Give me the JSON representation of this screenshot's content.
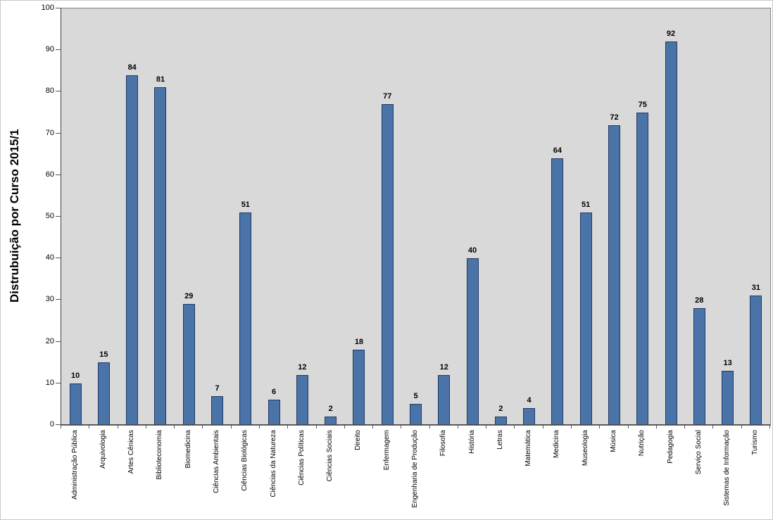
{
  "chart_data": {
    "type": "bar",
    "title": "Distrubuição por Curso 2015/1",
    "ylabel": "Distrubuição por Curso 2015/1",
    "xlabel": "",
    "ylim": [
      0,
      100
    ],
    "yticks": [
      0,
      10,
      20,
      30,
      40,
      50,
      60,
      70,
      80,
      90,
      100
    ],
    "grid": false,
    "legend_position": "none",
    "value_labels_shown": true,
    "bar_color": "#4a74a8",
    "bar_border_color": "#203864",
    "plot_background": "#d9d9d9",
    "categories": [
      "Administração Pública",
      "Arquivologia",
      "Artes Cênicas",
      "Biblioteconomia",
      "Biomedicina",
      "Ciências Ambientais",
      "Ciências Biológicas",
      "Ciências da Natureza",
      "Ciências Políticas",
      "Ciências Sociais",
      "Direito",
      "Enfermagem",
      "Engenharia de Produção",
      "Filosofia",
      "História",
      "Letras",
      "Matemática",
      "Medicina",
      "Museologia",
      "Música",
      "Nutrição",
      "Pedagogia",
      "Serviço Social",
      "Sistemas de Informação",
      "Turismo"
    ],
    "values": [
      10,
      15,
      84,
      81,
      29,
      7,
      51,
      6,
      12,
      2,
      18,
      77,
      5,
      12,
      40,
      2,
      4,
      64,
      51,
      72,
      75,
      92,
      28,
      13,
      31
    ]
  }
}
